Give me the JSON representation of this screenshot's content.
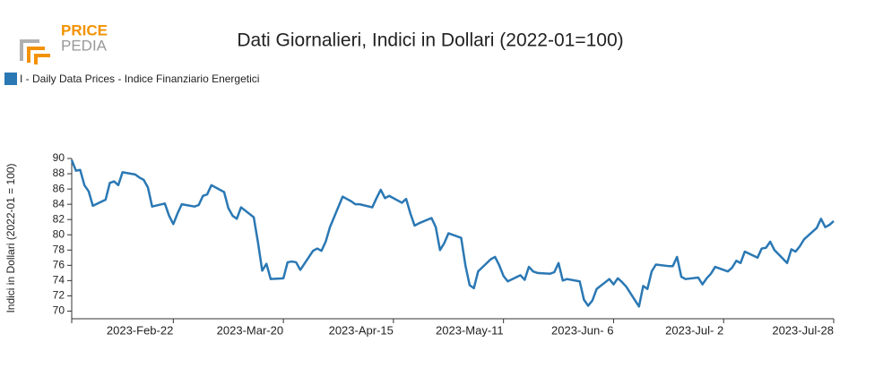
{
  "logo": {
    "line1": "PRICE",
    "line2": "PEDIA"
  },
  "chart_data": {
    "type": "line",
    "title": "Dati Giornalieri, Indici in Dollari (2022-01=100)",
    "ylabel": "Indici in Dollari (2022-01 = 100)",
    "x": [
      "2023-01-29",
      "2023-01-30",
      "2023-01-31",
      "2023-02-01",
      "2023-02-02",
      "2023-02-03",
      "2023-02-06",
      "2023-02-07",
      "2023-02-08",
      "2023-02-09",
      "2023-02-10",
      "2023-02-13",
      "2023-02-14",
      "2023-02-15",
      "2023-02-16",
      "2023-02-17",
      "2023-02-20",
      "2023-02-21",
      "2023-02-22",
      "2023-02-23",
      "2023-02-24",
      "2023-02-27",
      "2023-02-28",
      "2023-03-01",
      "2023-03-02",
      "2023-03-03",
      "2023-03-06",
      "2023-03-07",
      "2023-03-08",
      "2023-03-09",
      "2023-03-10",
      "2023-03-13",
      "2023-03-14",
      "2023-03-15",
      "2023-03-16",
      "2023-03-17",
      "2023-03-20",
      "2023-03-21",
      "2023-03-22",
      "2023-03-23",
      "2023-03-24",
      "2023-03-27",
      "2023-03-28",
      "2023-03-29",
      "2023-03-30",
      "2023-03-31",
      "2023-04-03",
      "2023-04-04",
      "2023-04-05",
      "2023-04-06",
      "2023-04-07",
      "2023-04-10",
      "2023-04-11",
      "2023-04-12",
      "2023-04-13",
      "2023-04-14",
      "2023-04-17",
      "2023-04-18",
      "2023-04-19",
      "2023-04-20",
      "2023-04-21",
      "2023-04-24",
      "2023-04-25",
      "2023-04-26",
      "2023-04-27",
      "2023-04-28",
      "2023-05-01",
      "2023-05-02",
      "2023-05-03",
      "2023-05-04",
      "2023-05-05",
      "2023-05-08",
      "2023-05-09",
      "2023-05-10",
      "2023-05-11",
      "2023-05-12",
      "2023-05-15",
      "2023-05-16",
      "2023-05-17",
      "2023-05-18",
      "2023-05-19",
      "2023-05-22",
      "2023-05-23",
      "2023-05-24",
      "2023-05-25",
      "2023-05-26",
      "2023-05-29",
      "2023-05-30",
      "2023-05-31",
      "2023-06-01",
      "2023-06-02",
      "2023-06-05",
      "2023-06-06",
      "2023-06-07",
      "2023-06-08",
      "2023-06-09",
      "2023-06-12",
      "2023-06-13",
      "2023-06-14",
      "2023-06-15",
      "2023-06-16",
      "2023-06-19",
      "2023-06-20",
      "2023-06-21",
      "2023-06-22",
      "2023-06-23",
      "2023-06-26",
      "2023-06-27",
      "2023-06-28",
      "2023-06-29",
      "2023-06-30",
      "2023-07-03",
      "2023-07-04",
      "2023-07-05",
      "2023-07-06",
      "2023-07-07",
      "2023-07-10",
      "2023-07-11",
      "2023-07-12",
      "2023-07-13",
      "2023-07-14",
      "2023-07-17",
      "2023-07-18",
      "2023-07-19",
      "2023-07-20",
      "2023-07-21",
      "2023-07-24",
      "2023-07-25",
      "2023-07-26",
      "2023-07-27",
      "2023-07-28"
    ],
    "series": [
      {
        "name": "I - Daily Data Prices - Indice Finanziario Energetici",
        "color": "#2a78b4",
        "values": [
          89.8,
          88.4,
          88.5,
          86.5,
          85.7,
          83.8,
          84.6,
          86.8,
          87.0,
          86.5,
          88.2,
          87.9,
          87.5,
          87.2,
          86.2,
          83.7,
          84.1,
          82.5,
          81.4,
          82.8,
          84.0,
          83.7,
          83.9,
          85.1,
          85.3,
          86.5,
          85.6,
          83.5,
          82.5,
          82.1,
          83.6,
          82.3,
          79.0,
          75.3,
          76.2,
          74.2,
          74.3,
          76.4,
          76.5,
          76.4,
          75.4,
          77.9,
          78.2,
          77.9,
          79.1,
          81.0,
          85.0,
          84.7,
          84.4,
          84.0,
          84.0,
          83.6,
          84.8,
          85.9,
          84.8,
          85.1,
          84.2,
          84.7,
          82.8,
          81.2,
          81.5,
          82.2,
          81.0,
          78.0,
          78.9,
          80.2,
          79.6,
          76.0,
          73.4,
          73.0,
          75.2,
          76.8,
          77.1,
          76.0,
          74.6,
          73.9,
          74.7,
          74.1,
          75.8,
          75.2,
          75.0,
          74.9,
          75.1,
          76.3,
          74.0,
          74.2,
          73.9,
          71.5,
          70.7,
          71.4,
          72.9,
          74.2,
          73.5,
          74.3,
          73.8,
          73.2,
          70.6,
          73.3,
          72.9,
          75.2,
          76.1,
          75.9,
          75.9,
          77.1,
          74.5,
          74.2,
          74.4,
          73.5,
          74.3,
          74.9,
          75.8,
          75.2,
          75.7,
          76.6,
          76.3,
          77.8,
          77.0,
          78.2,
          78.3,
          79.1,
          78.0,
          76.3,
          78.1,
          77.8,
          78.5,
          79.4,
          80.9,
          82.1,
          81.0,
          81.3,
          81.8
        ]
      }
    ],
    "xlim": [
      "2023-01-29",
      "2023-07-28"
    ],
    "xticks": [
      {
        "value": "2023-02-22",
        "label": "2023-Feb-22"
      },
      {
        "value": "2023-03-20",
        "label": "2023-Mar-20"
      },
      {
        "value": "2023-04-15",
        "label": "2023-Apr-15"
      },
      {
        "value": "2023-05-11",
        "label": "2023-May-11"
      },
      {
        "value": "2023-06-06",
        "label": "2023-Jun- 6"
      },
      {
        "value": "2023-07-02",
        "label": "2023-Jul- 2"
      },
      {
        "value": "2023-07-28",
        "label": "2023-Jul-28"
      }
    ],
    "ylim": [
      69,
      90
    ],
    "yticks": [
      70,
      72,
      74,
      76,
      78,
      80,
      82,
      84,
      86,
      88,
      90
    ]
  }
}
